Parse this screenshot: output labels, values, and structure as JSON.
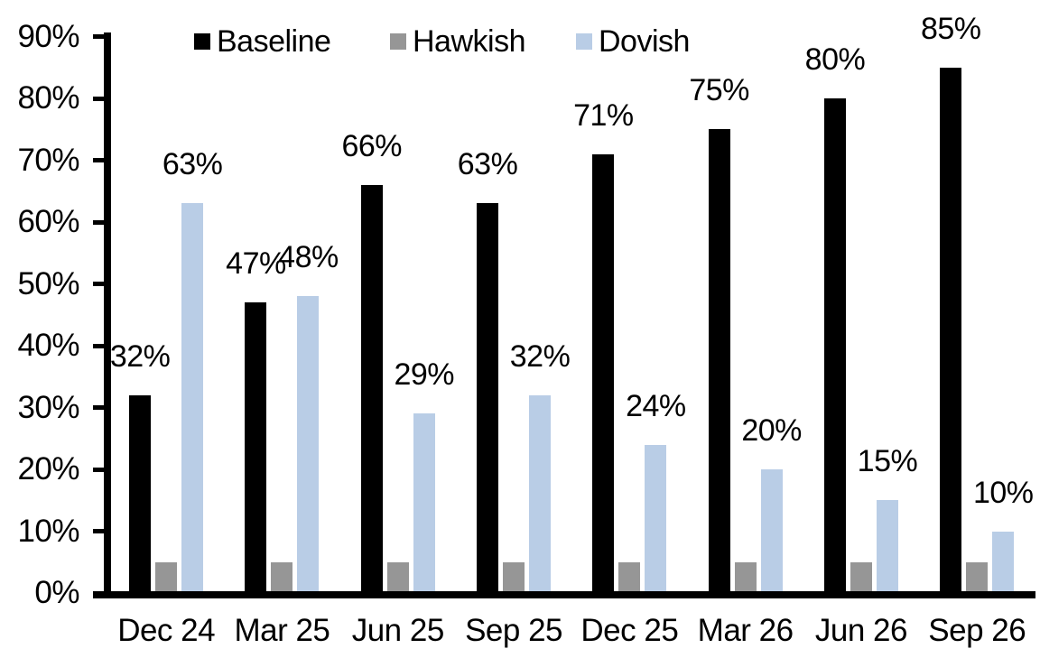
{
  "chart_data": {
    "type": "bar",
    "title": "",
    "categories": [
      "Dec 24",
      "Mar 25",
      "Jun 25",
      "Sep 25",
      "Dec 25",
      "Mar 26",
      "Jun 26",
      "Sep 26"
    ],
    "series": [
      {
        "name": "Baseline",
        "color": "#000000",
        "values": [
          32,
          47,
          66,
          63,
          71,
          75,
          80,
          85
        ],
        "data_labels": [
          "32%",
          "47%",
          "66%",
          "63%",
          "71%",
          "75%",
          "80%",
          "85%"
        ]
      },
      {
        "name": "Hawkish",
        "color": "#969696",
        "values": [
          5,
          5,
          5,
          5,
          5,
          5,
          5,
          5
        ],
        "data_labels": []
      },
      {
        "name": "Dovish",
        "color": "#B9CDE6",
        "values": [
          63,
          48,
          29,
          32,
          24,
          20,
          15,
          10
        ],
        "data_labels": [
          "63%",
          "48%",
          "29%",
          "32%",
          "24%",
          "20%",
          "15%",
          "10%"
        ]
      }
    ],
    "y_axis": {
      "min": 0,
      "max": 90,
      "step": 10,
      "tick_labels": [
        "0%",
        "10%",
        "20%",
        "30%",
        "40%",
        "50%",
        "60%",
        "70%",
        "80%",
        "90%"
      ]
    },
    "legend": {
      "position": "top",
      "entries": [
        "Baseline",
        "Hawkish",
        "Dovish"
      ]
    },
    "grid": false,
    "background": "#FFFFFF",
    "text_color": "#000000"
  }
}
